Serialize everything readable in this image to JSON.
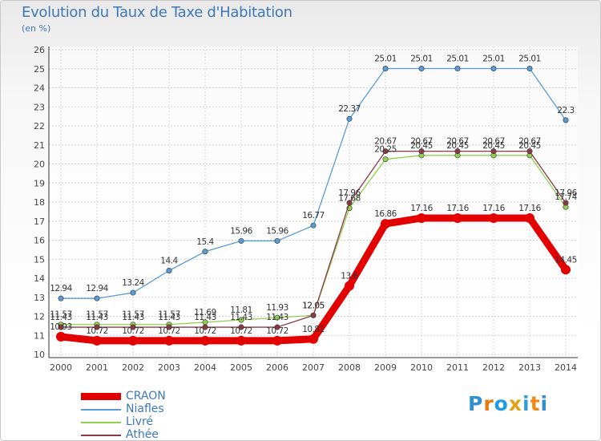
{
  "header": {
    "title": "Evolution du Taux de Taxe d'Habitation",
    "subtitle": "(en %)"
  },
  "brand": {
    "text": "Proxiti",
    "colors": [
      "#2f8fd0",
      "#e57a12",
      "#1f9be0",
      "#e0a21a",
      "#2f9fd3",
      "#f08a16",
      "#2f8fd0"
    ]
  },
  "chart_data": {
    "type": "line",
    "title": "Evolution du Taux de Taxe d'Habitation",
    "subtitle": "(en %)",
    "xlabel": "",
    "ylabel": "",
    "x": [
      "2000",
      "2001",
      "2002",
      "2003",
      "2004",
      "2005",
      "2006",
      "2007",
      "2008",
      "2009",
      "2010",
      "2011",
      "2012",
      "2013",
      "2014"
    ],
    "ylim": [
      10,
      26
    ],
    "yticks": [
      "10",
      "11",
      "12",
      "13",
      "14",
      "15",
      "16",
      "17",
      "18",
      "19",
      "20",
      "21",
      "22",
      "23",
      "24",
      "25",
      "26"
    ],
    "grid": true,
    "legend_position": "bottom-left",
    "series": [
      {
        "name": "CRAON",
        "color": "#e30000",
        "width": 9,
        "values": [
          10.93,
          10.72,
          10.72,
          10.72,
          10.72,
          10.72,
          10.72,
          10.81,
          13.6,
          16.86,
          17.16,
          17.16,
          17.16,
          17.16,
          14.45
        ],
        "labels": [
          "10.93",
          "10.72",
          "10.72",
          "10.72",
          "10.72",
          "10.72",
          "10.72",
          "10.81",
          "13.6",
          "16.86",
          "17.16",
          "17.16",
          "17.16",
          "17.16",
          "14.45"
        ]
      },
      {
        "name": "Niafles",
        "color": "#5b9bd5",
        "width": 1.3,
        "values": [
          12.94,
          12.94,
          13.24,
          14.4,
          15.4,
          15.96,
          15.96,
          16.77,
          22.37,
          25.01,
          25.01,
          25.01,
          25.01,
          25.01,
          22.3
        ],
        "labels": [
          "12.94",
          "12.94",
          "13.24",
          "14.4",
          "15.4",
          "15.96",
          "15.96",
          "16.77",
          "22.37",
          "25.01",
          "25.01",
          "25.01",
          "25.01",
          "25.01",
          "22.3"
        ]
      },
      {
        "name": "Livré",
        "color": "#8ed14f",
        "width": 1.3,
        "values": [
          11.57,
          11.57,
          11.57,
          11.57,
          11.69,
          11.81,
          11.93,
          12.05,
          17.68,
          20.25,
          20.45,
          20.45,
          20.45,
          20.45,
          17.74
        ],
        "labels": [
          "11.57",
          "11.57",
          "11.57",
          "11.57",
          "11.69",
          "11.81",
          "11.93",
          "12.05",
          "17.68",
          "20.25",
          "20.45",
          "20.45",
          "20.45",
          "20.45",
          "17.74"
        ]
      },
      {
        "name": "Athée",
        "color": "#8b3a45",
        "width": 1.3,
        "values": [
          11.43,
          11.43,
          11.43,
          11.43,
          11.43,
          11.43,
          11.43,
          12.05,
          17.96,
          20.67,
          20.67,
          20.67,
          20.67,
          20.67,
          17.96
        ],
        "labels": [
          "11.43",
          "11.43",
          "11.43",
          "11.43",
          "11.43",
          "11.43",
          "11.43",
          "12.05",
          "17.96",
          "20.67",
          "20.67",
          "20.67",
          "20.67",
          "20.67",
          "17.96"
        ]
      }
    ]
  }
}
